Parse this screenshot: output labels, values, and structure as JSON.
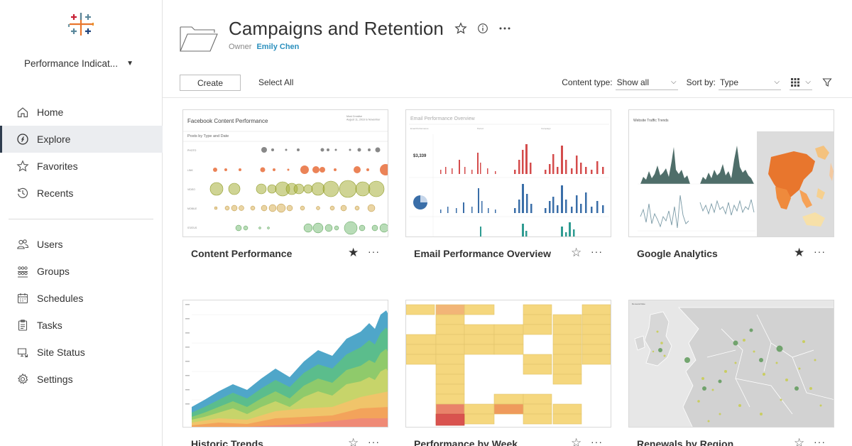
{
  "sidebar": {
    "site_name": "Performance Indicat...",
    "nav_primary": [
      {
        "label": "Home",
        "icon": "home-icon",
        "active": false
      },
      {
        "label": "Explore",
        "icon": "compass-icon",
        "active": true
      },
      {
        "label": "Favorites",
        "icon": "star-icon",
        "active": false
      },
      {
        "label": "Recents",
        "icon": "clock-icon",
        "active": false
      }
    ],
    "nav_admin": [
      {
        "label": "Users",
        "icon": "users-icon"
      },
      {
        "label": "Groups",
        "icon": "groups-icon"
      },
      {
        "label": "Schedules",
        "icon": "calendar-icon"
      },
      {
        "label": "Tasks",
        "icon": "clipboard-icon"
      },
      {
        "label": "Site Status",
        "icon": "monitor-icon"
      },
      {
        "label": "Settings",
        "icon": "gear-icon"
      }
    ]
  },
  "header": {
    "title": "Campaigns and Retention",
    "owner_label": "Owner",
    "owner_name": "Emily Chen"
  },
  "toolbar": {
    "create_label": "Create",
    "select_all_label": "Select All",
    "content_type_label": "Content type:",
    "content_type_value": "Show all",
    "sort_by_label": "Sort by:",
    "sort_by_value": "Type"
  },
  "cards": [
    {
      "title": "Content Performance",
      "favorite": true,
      "thumb": {
        "title": "Facebook Content Performance",
        "subtitle": "Posts by Type and Date",
        "note": "Most Creative\nAugust 11, 2016 to November"
      }
    },
    {
      "title": "Email Performance Overview",
      "favorite": false,
      "thumb": {
        "title": "Email Performance Overview",
        "kpi": "$3,339"
      }
    },
    {
      "title": "Google Analytics",
      "favorite": true,
      "thumb": {
        "title": "Website Traffic Trends"
      }
    },
    {
      "title": "Historic Trends",
      "favorite": false
    },
    {
      "title": "Performance by Week",
      "favorite": false
    },
    {
      "title": "Renewals by Region",
      "favorite": false,
      "thumb": {
        "title": "Renewal Rate"
      }
    }
  ],
  "colors": {
    "accent_link": "#2a8fbd",
    "favorite_star": "#333333",
    "active_nav_bg": "#ebedf0",
    "red_bar": "#d44c4c",
    "blue_bar": "#3a6ea8",
    "teal_bar": "#2e9b91",
    "yellow_cell": "#f5d77e",
    "orange_cell": "#ef8a3c"
  }
}
